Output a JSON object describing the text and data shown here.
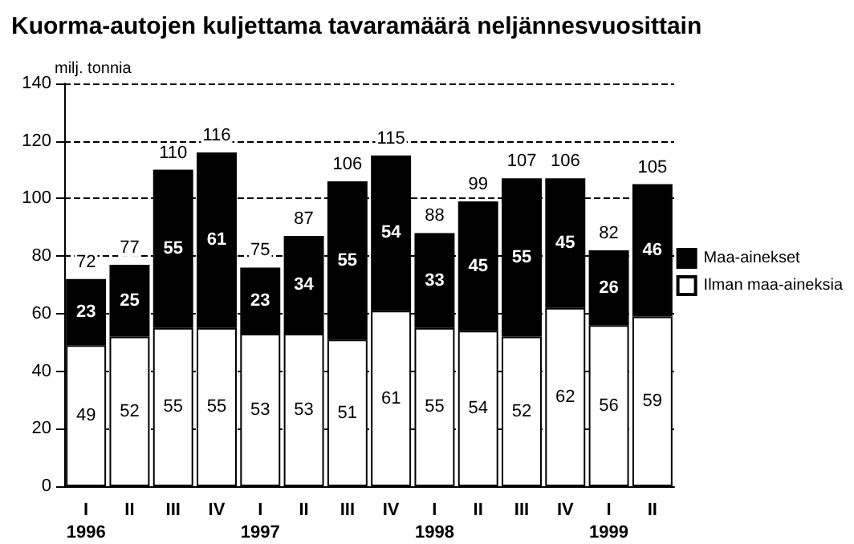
{
  "chart_data": {
    "type": "bar",
    "title": "Kuorma-autojen kuljettama tavaramäärä neljännesvuosittain",
    "ylabel": "milj. tonnia",
    "categories": [
      "I\n1996",
      "II",
      "III",
      "IV",
      "I\n1997",
      "II",
      "III",
      "IV",
      "I\n1998",
      "II",
      "III",
      "IV",
      "I\n1999",
      "II"
    ],
    "series": [
      {
        "name": "Ilman maa-aineksia",
        "color": "#ffffff",
        "values": [
          49,
          52,
          55,
          55,
          53,
          53,
          51,
          61,
          55,
          54,
          52,
          62,
          56,
          59
        ]
      },
      {
        "name": "Maa-ainekset",
        "color": "#000000",
        "values": [
          23,
          25,
          55,
          61,
          23,
          34,
          55,
          54,
          33,
          45,
          55,
          45,
          26,
          46
        ]
      }
    ],
    "totals": [
      "72",
      "77",
      "110",
      "116",
      "75",
      "87",
      "106",
      "115",
      "88",
      "99",
      "107",
      "106",
      "82",
      "105"
    ],
    "stacked": true,
    "data_labels": true,
    "ylim": [
      0,
      140
    ],
    "yticks": [
      0,
      20,
      40,
      60,
      80,
      100,
      120,
      140
    ],
    "grid": "y",
    "legend": "right"
  }
}
